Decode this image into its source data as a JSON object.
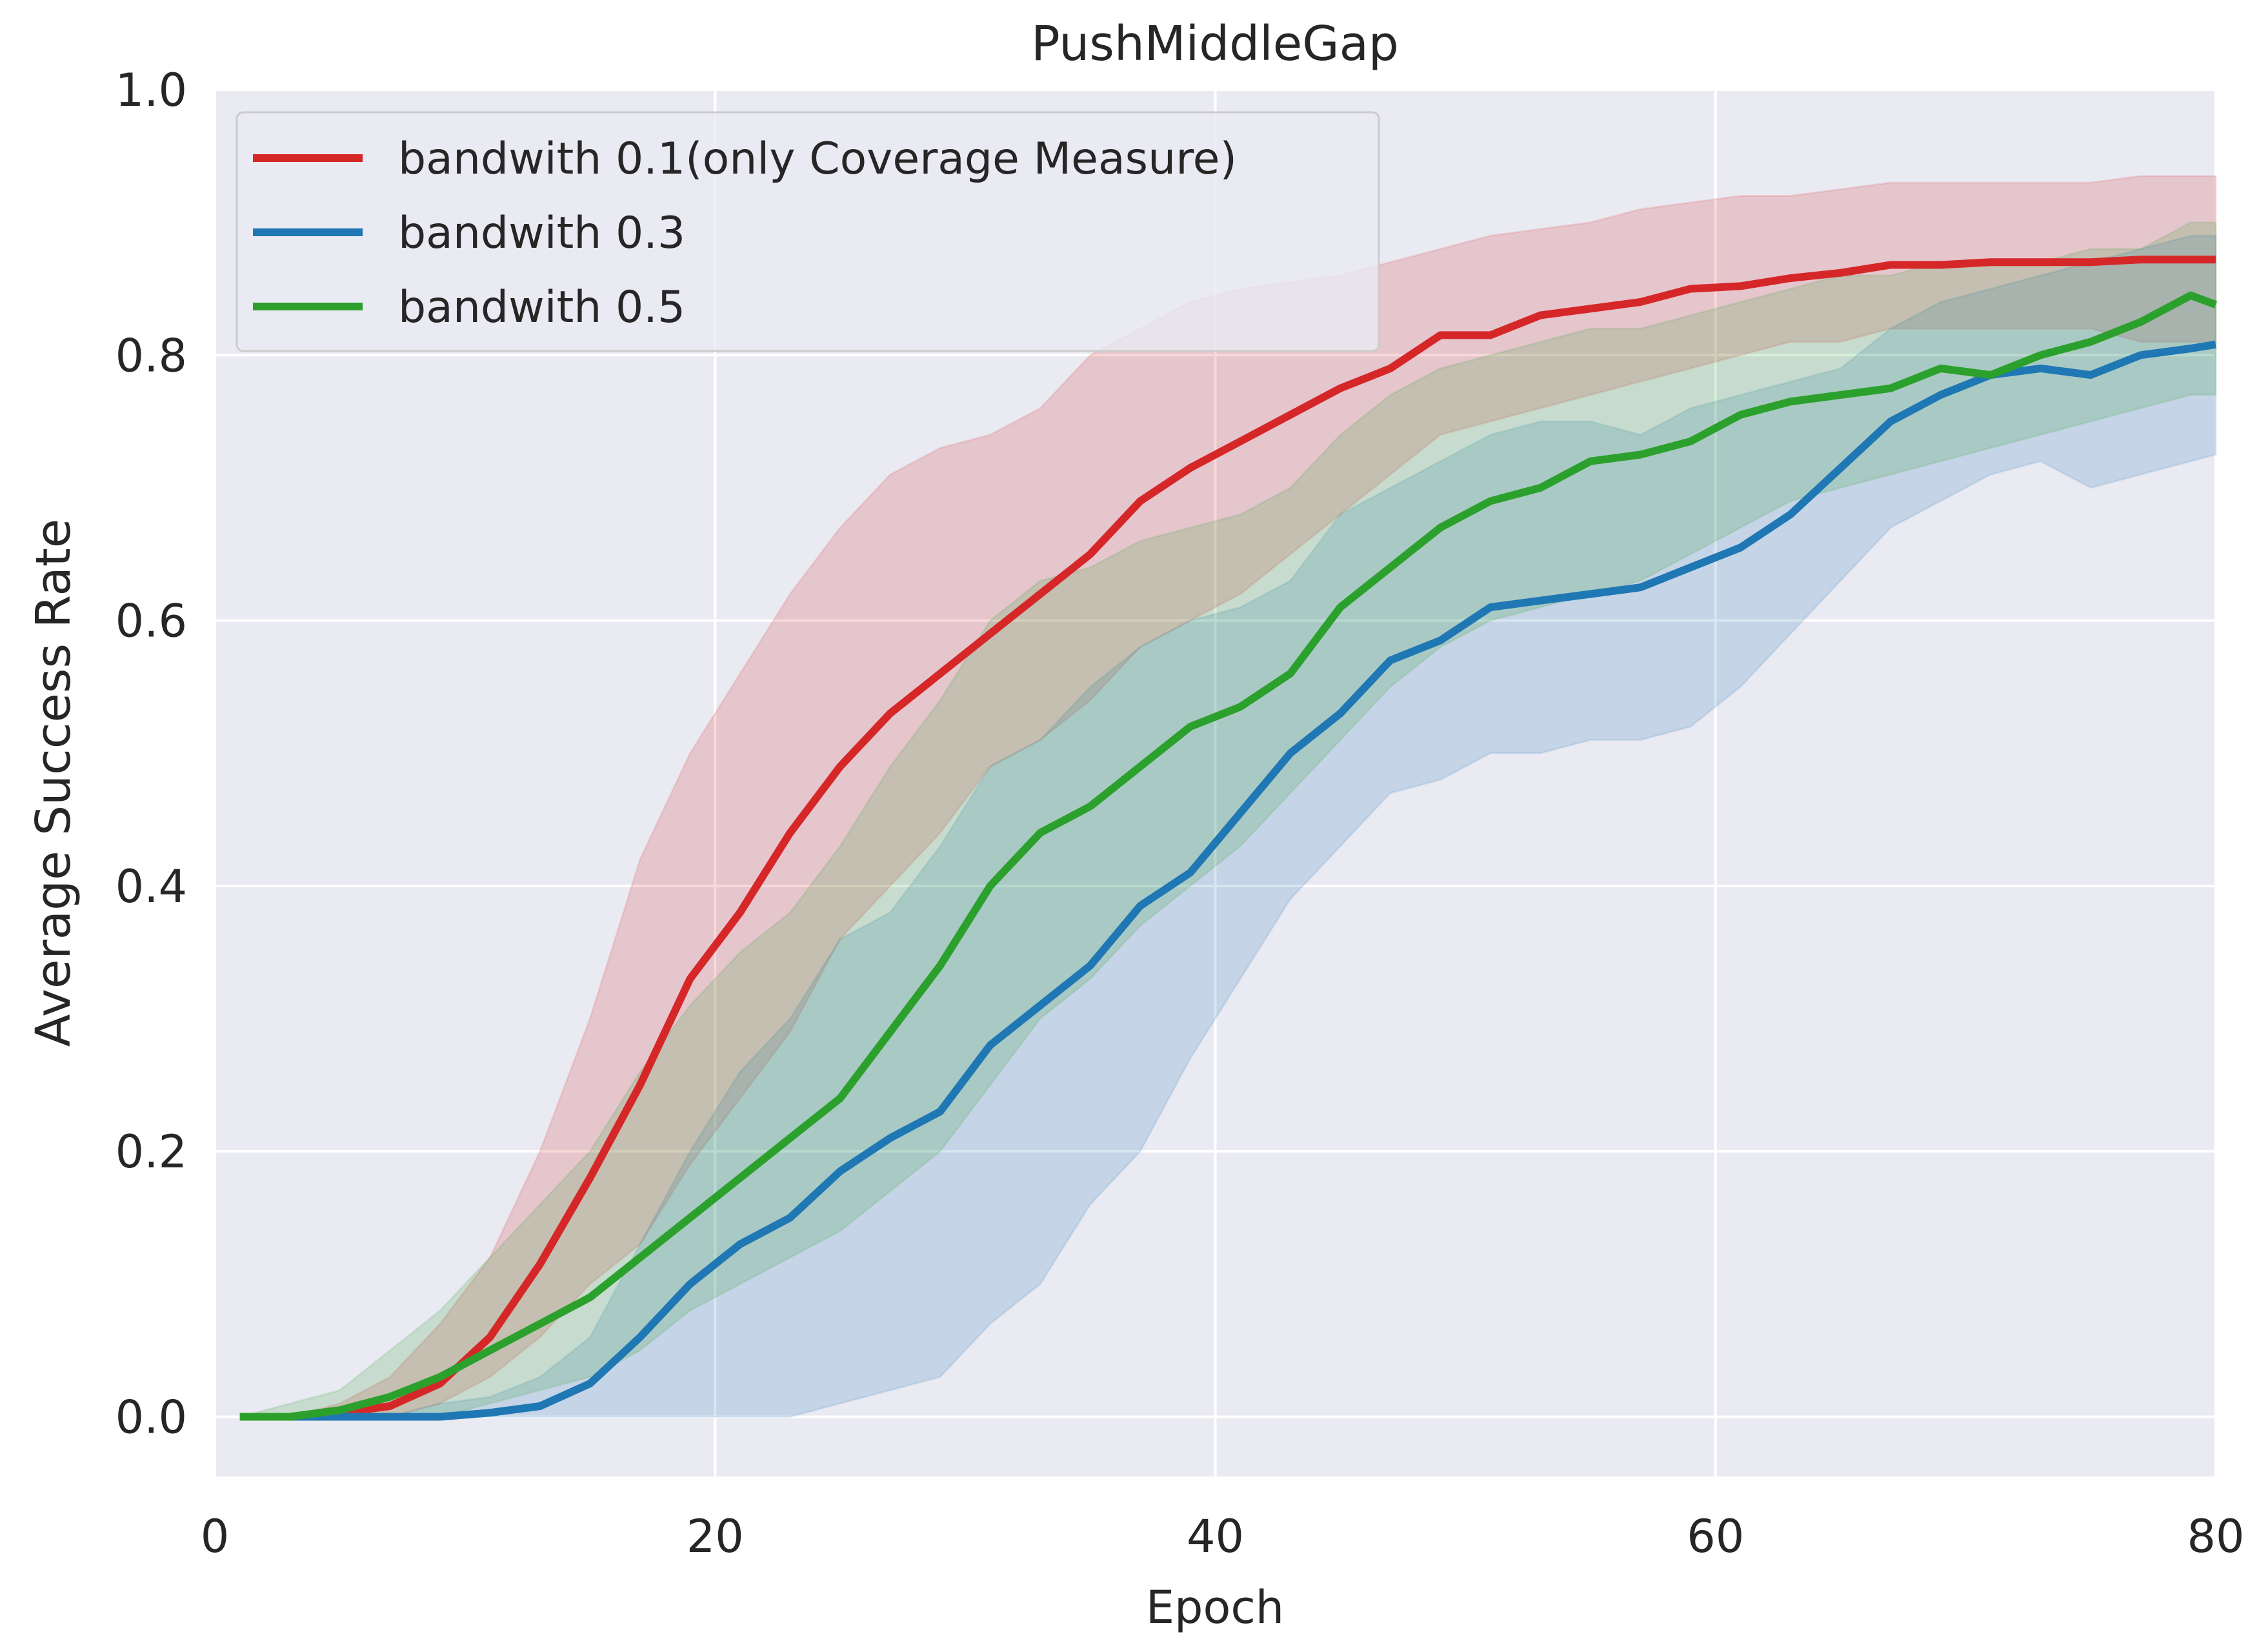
{
  "chart_data": {
    "type": "line",
    "title": "PushMiddleGap",
    "xlabel": "Epoch",
    "ylabel": "Average Success Rate",
    "xlim": [
      0,
      80
    ],
    "ylim": [
      -0.045,
      1.0
    ],
    "xticks": [
      0,
      20,
      40,
      60,
      80
    ],
    "xtick_labels": [
      "0",
      "20",
      "40",
      "60",
      "80"
    ],
    "yticks": [
      0.0,
      0.2,
      0.4,
      0.6,
      0.8,
      1.0
    ],
    "ytick_labels": [
      "0.0",
      "0.2",
      "0.4",
      "0.6",
      "0.8",
      "1.0"
    ],
    "grid": true,
    "legend_position": "upper-left",
    "background_color": "#eaeaf2",
    "series": [
      {
        "name": "bandwith 0.1(only Coverage Measure)",
        "color": "#d62728",
        "x": [
          1,
          3,
          5,
          7,
          9,
          11,
          13,
          15,
          17,
          19,
          21,
          23,
          25,
          27,
          29,
          31,
          33,
          35,
          37,
          39,
          41,
          43,
          45,
          47,
          49,
          51,
          53,
          55,
          57,
          59,
          61,
          63,
          65,
          67,
          69,
          71,
          73,
          75,
          77,
          79,
          80
        ],
        "y": [
          0.0,
          0.0,
          0.003,
          0.008,
          0.025,
          0.06,
          0.115,
          0.18,
          0.25,
          0.33,
          0.38,
          0.44,
          0.49,
          0.53,
          0.56,
          0.59,
          0.62,
          0.65,
          0.69,
          0.715,
          0.735,
          0.755,
          0.775,
          0.79,
          0.815,
          0.815,
          0.83,
          0.835,
          0.84,
          0.85,
          0.852,
          0.858,
          0.862,
          0.868,
          0.868,
          0.87,
          0.87,
          0.87,
          0.872,
          0.872,
          0.872
        ],
        "lower": [
          0.0,
          0.0,
          0.0,
          0.0,
          0.01,
          0.03,
          0.06,
          0.1,
          0.13,
          0.19,
          0.24,
          0.29,
          0.36,
          0.4,
          0.44,
          0.49,
          0.51,
          0.54,
          0.58,
          0.6,
          0.62,
          0.65,
          0.68,
          0.71,
          0.74,
          0.75,
          0.76,
          0.77,
          0.78,
          0.79,
          0.8,
          0.81,
          0.81,
          0.82,
          0.82,
          0.82,
          0.82,
          0.82,
          0.81,
          0.81,
          0.81
        ],
        "upper": [
          0.0,
          0.0,
          0.01,
          0.03,
          0.07,
          0.12,
          0.2,
          0.3,
          0.42,
          0.5,
          0.56,
          0.62,
          0.67,
          0.71,
          0.73,
          0.74,
          0.76,
          0.8,
          0.82,
          0.84,
          0.85,
          0.855,
          0.86,
          0.87,
          0.88,
          0.89,
          0.895,
          0.9,
          0.91,
          0.915,
          0.92,
          0.92,
          0.925,
          0.93,
          0.93,
          0.93,
          0.93,
          0.93,
          0.935,
          0.935,
          0.935
        ]
      },
      {
        "name": "bandwith 0.3",
        "color": "#1f77b4",
        "x": [
          1,
          3,
          5,
          7,
          9,
          11,
          13,
          15,
          17,
          19,
          21,
          23,
          25,
          27,
          29,
          31,
          33,
          35,
          37,
          39,
          41,
          43,
          45,
          47,
          49,
          51,
          53,
          55,
          57,
          59,
          61,
          63,
          65,
          67,
          69,
          71,
          73,
          75,
          77,
          79,
          80
        ],
        "y": [
          0.0,
          0.0,
          0.0,
          0.0,
          0.0,
          0.003,
          0.008,
          0.025,
          0.06,
          0.1,
          0.13,
          0.15,
          0.185,
          0.21,
          0.23,
          0.28,
          0.31,
          0.34,
          0.385,
          0.41,
          0.455,
          0.5,
          0.53,
          0.57,
          0.585,
          0.61,
          0.615,
          0.62,
          0.625,
          0.64,
          0.655,
          0.68,
          0.715,
          0.75,
          0.77,
          0.785,
          0.79,
          0.785,
          0.8,
          0.805,
          0.808
        ],
        "lower": [
          0.0,
          0.0,
          0.0,
          0.0,
          0.0,
          0.0,
          0.0,
          0.0,
          0.0,
          0.0,
          0.0,
          0.0,
          0.01,
          0.02,
          0.03,
          0.07,
          0.1,
          0.16,
          0.2,
          0.27,
          0.33,
          0.39,
          0.43,
          0.47,
          0.48,
          0.5,
          0.5,
          0.51,
          0.51,
          0.52,
          0.55,
          0.59,
          0.63,
          0.67,
          0.69,
          0.71,
          0.72,
          0.7,
          0.71,
          0.72,
          0.725
        ],
        "upper": [
          0.0,
          0.0,
          0.0,
          0.0,
          0.01,
          0.015,
          0.03,
          0.06,
          0.13,
          0.2,
          0.26,
          0.3,
          0.36,
          0.38,
          0.43,
          0.49,
          0.51,
          0.55,
          0.58,
          0.6,
          0.61,
          0.63,
          0.68,
          0.7,
          0.72,
          0.74,
          0.75,
          0.75,
          0.74,
          0.76,
          0.77,
          0.78,
          0.79,
          0.82,
          0.84,
          0.85,
          0.86,
          0.87,
          0.88,
          0.89,
          0.89
        ]
      },
      {
        "name": "bandwith 0.5",
        "color": "#2ca02c",
        "x": [
          1,
          3,
          5,
          7,
          9,
          11,
          13,
          15,
          17,
          19,
          21,
          23,
          25,
          27,
          29,
          31,
          33,
          35,
          37,
          39,
          41,
          43,
          45,
          47,
          49,
          51,
          53,
          55,
          57,
          59,
          61,
          63,
          65,
          67,
          69,
          71,
          73,
          75,
          77,
          79,
          80
        ],
        "y": [
          0.0,
          0.0,
          0.005,
          0.015,
          0.03,
          0.05,
          0.07,
          0.09,
          0.12,
          0.15,
          0.18,
          0.21,
          0.24,
          0.29,
          0.34,
          0.4,
          0.44,
          0.46,
          0.49,
          0.52,
          0.535,
          0.56,
          0.61,
          0.64,
          0.67,
          0.69,
          0.7,
          0.72,
          0.725,
          0.735,
          0.755,
          0.765,
          0.77,
          0.775,
          0.79,
          0.785,
          0.8,
          0.81,
          0.825,
          0.845,
          0.838
        ],
        "lower": [
          0.0,
          0.0,
          0.0,
          0.0,
          0.0,
          0.01,
          0.02,
          0.03,
          0.05,
          0.08,
          0.1,
          0.12,
          0.14,
          0.17,
          0.2,
          0.25,
          0.3,
          0.33,
          0.37,
          0.4,
          0.43,
          0.47,
          0.51,
          0.55,
          0.58,
          0.6,
          0.61,
          0.62,
          0.63,
          0.65,
          0.67,
          0.69,
          0.7,
          0.71,
          0.72,
          0.73,
          0.74,
          0.75,
          0.76,
          0.77,
          0.77
        ],
        "upper": [
          0.0,
          0.01,
          0.02,
          0.05,
          0.08,
          0.12,
          0.16,
          0.2,
          0.26,
          0.31,
          0.35,
          0.38,
          0.43,
          0.49,
          0.54,
          0.6,
          0.63,
          0.64,
          0.66,
          0.67,
          0.68,
          0.7,
          0.74,
          0.77,
          0.79,
          0.8,
          0.81,
          0.82,
          0.82,
          0.83,
          0.84,
          0.85,
          0.86,
          0.86,
          0.87,
          0.87,
          0.87,
          0.88,
          0.88,
          0.9,
          0.9
        ]
      }
    ]
  }
}
